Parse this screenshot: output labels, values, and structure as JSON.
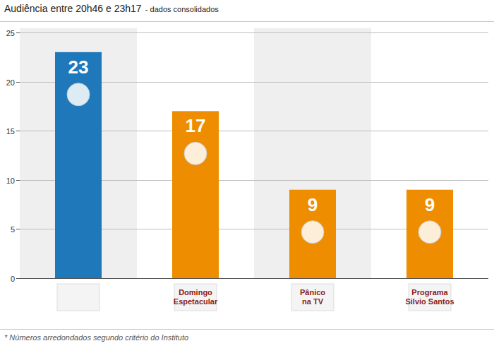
{
  "chart_data": {
    "type": "bar",
    "title": "Audiência entre 20h46 e 23h17",
    "subtitle": "- dados consolidados",
    "categories": [
      null,
      "Domingo Espetacular",
      "Pânico na TV",
      "Programa Silvio Santos"
    ],
    "values": [
      23,
      17,
      9,
      9
    ],
    "colors": [
      "#1f78b9",
      "#ee8d00",
      "#ee8d00",
      "#ee8d00"
    ],
    "ylim": [
      0,
      25
    ],
    "yticks": [
      0,
      5,
      10,
      15,
      20,
      25
    ],
    "grid": true,
    "data_labels": true,
    "annotations": [
      "* Números arredondados segundo critério do Instituto"
    ]
  }
}
